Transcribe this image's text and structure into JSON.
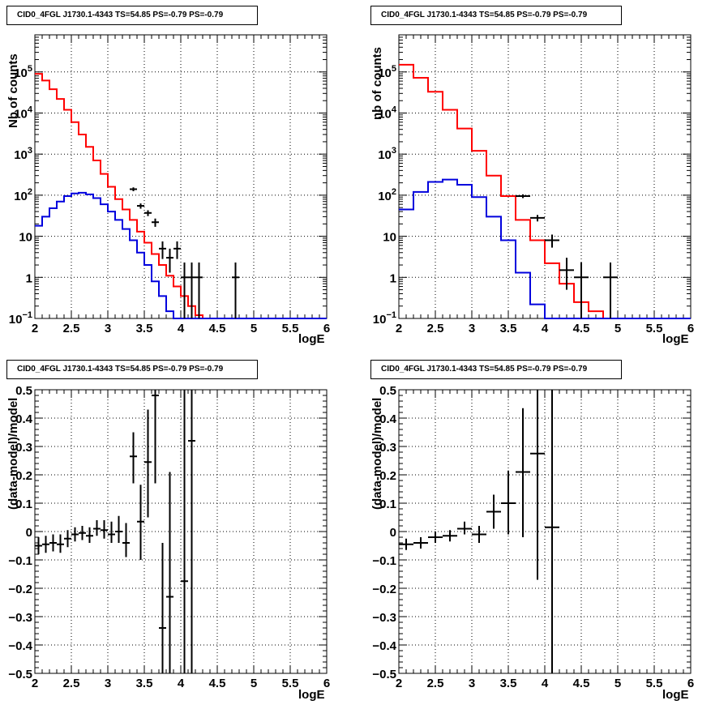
{
  "panels": [
    {
      "title": "CID0_4FGL J1730.1-4343 TS=54.85 PS=-0.79 PS=-0.79",
      "xlabel": "logE",
      "ylabel": "Nb of counts"
    },
    {
      "title": "CID0_4FGL J1730.1-4343 TS=54.85 PS=-0.79 PS=-0.79",
      "xlabel": "logE",
      "ylabel": "nb of counts"
    },
    {
      "title": "CID0_4FGL J1730.1-4343 TS=54.85 PS=-0.79 PS=-0.79",
      "xlabel": "logE",
      "ylabel": "(data-model)/model"
    },
    {
      "title": "CID0_4FGL J1730.1-4343 TS=54.85 PS=-0.79 PS=-0.79",
      "xlabel": "logE",
      "ylabel": "(data-model)/model"
    }
  ],
  "chart_data": [
    {
      "type": "line",
      "title": "CID0_4FGL J1730.1-4343 TS=54.85 PS=-0.79 PS=-0.79",
      "xlabel": "logE",
      "ylabel": "Nb of counts",
      "xlim": [
        2,
        6
      ],
      "ylim": [
        0.1,
        800000
      ],
      "yscale": "log",
      "grid": true,
      "x_ticks": [
        "2",
        "2.5",
        "3",
        "3.5",
        "4",
        "4.5",
        "5",
        "5.5",
        "6"
      ],
      "y_ticks": [
        {
          "v": 0.1,
          "label": "10",
          "sup": "−1"
        },
        {
          "v": 1,
          "label": "1",
          "sup": ""
        },
        {
          "v": 10,
          "label": "10",
          "sup": ""
        },
        {
          "v": 100,
          "label": "10",
          "sup": "2"
        },
        {
          "v": 1000,
          "label": "10",
          "sup": "3"
        },
        {
          "v": 10000,
          "label": "10",
          "sup": "4"
        },
        {
          "v": 100000,
          "label": "10",
          "sup": "5"
        }
      ],
      "bin_edges": [
        2.0,
        2.1,
        2.2,
        2.3,
        2.4,
        2.5,
        2.6,
        2.7,
        2.8,
        2.9,
        3.0,
        3.1,
        3.2,
        3.3,
        3.4,
        3.5,
        3.6,
        3.7,
        3.8,
        3.9,
        4.0,
        4.1,
        4.2,
        4.3,
        4.4,
        4.5,
        4.6,
        4.7,
        4.8,
        4.9,
        5.0,
        5.1,
        5.2,
        5.3,
        5.4,
        5.5,
        5.6,
        5.7,
        5.8,
        5.9,
        6.0
      ],
      "series": [
        {
          "color": "#ff0000",
          "values": [
            90000,
            62000,
            38000,
            22000,
            12000,
            6000,
            3000,
            1500,
            700,
            330,
            160,
            80,
            45,
            25,
            13,
            7,
            3.7,
            2.0,
            1.1,
            0.6,
            0.35,
            0.2,
            0.12,
            0.1,
            0.1,
            0.1,
            0.1,
            0.1,
            0.1,
            0.1,
            0.1,
            0.1,
            0.1,
            0.1,
            0.1,
            0.1,
            0.1,
            0.1,
            0.1,
            0.1
          ]
        },
        {
          "color": "#0000dd",
          "values": [
            18,
            30,
            48,
            70,
            95,
            110,
            115,
            105,
            85,
            60,
            40,
            25,
            15,
            8,
            4,
            2,
            0.8,
            0.35,
            0.15,
            0.1,
            0.1,
            0.1,
            0.1,
            0.1,
            0.1,
            0.1,
            0.1,
            0.1,
            0.1,
            0.1,
            0.1,
            0.1,
            0.1,
            0.1,
            0.1,
            0.1,
            0.1,
            0.1,
            0.1,
            0.1
          ]
        }
      ],
      "points": [
        {
          "x": 3.35,
          "y": 140,
          "lo": 125,
          "hi": 155
        },
        {
          "x": 3.45,
          "y": 55,
          "lo": 47,
          "hi": 63
        },
        {
          "x": 3.55,
          "y": 37,
          "lo": 31,
          "hi": 43
        },
        {
          "x": 3.65,
          "y": 22,
          "lo": 17,
          "hi": 27
        },
        {
          "x": 3.75,
          "y": 5,
          "lo": 2.8,
          "hi": 7.5
        },
        {
          "x": 3.85,
          "y": 3,
          "lo": 1.3,
          "hi": 5
        },
        {
          "x": 3.95,
          "y": 5,
          "lo": 2.8,
          "hi": 7.5
        },
        {
          "x": 4.05,
          "y": 1,
          "lo": 0.1,
          "hi": 2.3
        },
        {
          "x": 4.15,
          "y": 1,
          "lo": 0.1,
          "hi": 2.3
        },
        {
          "x": 4.25,
          "y": 1,
          "lo": 0.1,
          "hi": 2.3
        },
        {
          "x": 4.75,
          "y": 1,
          "lo": 0.1,
          "hi": 2.3
        }
      ]
    },
    {
      "type": "line",
      "title": "CID0_4FGL J1730.1-4343 TS=54.85 PS=-0.79 PS=-0.79",
      "xlabel": "logE",
      "ylabel": "nb of counts",
      "xlim": [
        2,
        6
      ],
      "ylim": [
        0.1,
        800000
      ],
      "yscale": "log",
      "grid": true,
      "x_ticks": [
        "2",
        "2.5",
        "3",
        "3.5",
        "4",
        "4.5",
        "5",
        "5.5",
        "6"
      ],
      "y_ticks": [
        {
          "v": 0.1,
          "label": "10",
          "sup": "−1"
        },
        {
          "v": 1,
          "label": "1",
          "sup": ""
        },
        {
          "v": 10,
          "label": "10",
          "sup": ""
        },
        {
          "v": 100,
          "label": "10",
          "sup": "2"
        },
        {
          "v": 1000,
          "label": "10",
          "sup": "3"
        },
        {
          "v": 10000,
          "label": "10",
          "sup": "4"
        },
        {
          "v": 100000,
          "label": "10",
          "sup": "5"
        }
      ],
      "bin_edges": [
        2.0,
        2.2,
        2.4,
        2.6,
        2.8,
        3.0,
        3.2,
        3.4,
        3.6,
        3.8,
        4.0,
        4.2,
        4.4,
        4.6,
        4.8,
        5.0,
        5.2,
        5.4,
        5.6,
        5.8,
        6.0
      ],
      "series": [
        {
          "color": "#ff0000",
          "values": [
            150000,
            72000,
            33000,
            12000,
            4200,
            1200,
            300,
            95,
            25,
            8,
            2.2,
            0.7,
            0.25,
            0.15,
            0.1,
            0.1,
            0.1,
            0.1,
            0.1,
            0.1
          ]
        },
        {
          "color": "#0000dd",
          "values": [
            45,
            120,
            210,
            240,
            180,
            90,
            30,
            8,
            1.3,
            0.22,
            0.1,
            0.1,
            0.1,
            0.1,
            0.1,
            0.1,
            0.1,
            0.1,
            0.1,
            0.1
          ]
        }
      ],
      "points": [
        {
          "x": 3.7,
          "y": 95,
          "lo": 85,
          "hi": 105
        },
        {
          "x": 3.9,
          "y": 28,
          "lo": 23,
          "hi": 33
        },
        {
          "x": 4.1,
          "y": 8,
          "lo": 5.3,
          "hi": 11
        },
        {
          "x": 4.3,
          "y": 1.5,
          "lo": 0.5,
          "hi": 3
        },
        {
          "x": 4.5,
          "y": 1,
          "lo": 0.1,
          "hi": 2.3
        },
        {
          "x": 4.9,
          "y": 1,
          "lo": 0.1,
          "hi": 2.3
        }
      ]
    },
    {
      "type": "scatter",
      "title": "CID0_4FGL J1730.1-4343 TS=54.85 PS=-0.79 PS=-0.79",
      "xlabel": "logE",
      "ylabel": "(data-model)/model",
      "xlim": [
        2,
        6
      ],
      "ylim": [
        -0.5,
        0.5
      ],
      "grid": true,
      "x_ticks": [
        "2",
        "2.5",
        "3",
        "3.5",
        "4",
        "4.5",
        "5",
        "5.5",
        "6"
      ],
      "y_ticks": [
        "−0.5",
        "−0.4",
        "−0.3",
        "−0.2",
        "−0.1",
        "0",
        "0.1",
        "0.2",
        "0.3",
        "0.4",
        "0.5"
      ],
      "points": [
        {
          "x": 2.05,
          "y": -0.05,
          "lo": -0.08,
          "hi": -0.02,
          "xw": 0.05
        },
        {
          "x": 2.15,
          "y": -0.045,
          "lo": -0.075,
          "hi": -0.015,
          "xw": 0.05
        },
        {
          "x": 2.25,
          "y": -0.04,
          "lo": -0.07,
          "hi": -0.01,
          "xw": 0.05
        },
        {
          "x": 2.35,
          "y": -0.045,
          "lo": -0.075,
          "hi": -0.01,
          "xw": 0.05
        },
        {
          "x": 2.45,
          "y": -0.025,
          "lo": -0.055,
          "hi": 0.005,
          "xw": 0.05
        },
        {
          "x": 2.55,
          "y": -0.01,
          "lo": -0.035,
          "hi": 0.015,
          "xw": 0.05
        },
        {
          "x": 2.65,
          "y": -0.005,
          "lo": -0.03,
          "hi": 0.02,
          "xw": 0.05
        },
        {
          "x": 2.75,
          "y": -0.015,
          "lo": -0.04,
          "hi": 0.015,
          "xw": 0.05
        },
        {
          "x": 2.85,
          "y": 0.01,
          "lo": -0.015,
          "hi": 0.04,
          "xw": 0.05
        },
        {
          "x": 2.95,
          "y": 0.005,
          "lo": -0.025,
          "hi": 0.04,
          "xw": 0.05
        },
        {
          "x": 3.05,
          "y": -0.01,
          "lo": -0.04,
          "hi": 0.035,
          "xw": 0.05
        },
        {
          "x": 3.15,
          "y": 0,
          "lo": -0.04,
          "hi": 0.055,
          "xw": 0.05
        },
        {
          "x": 3.25,
          "y": -0.04,
          "lo": -0.09,
          "hi": 0.03,
          "xw": 0.05
        },
        {
          "x": 3.35,
          "y": 0.265,
          "lo": 0.17,
          "hi": 0.35,
          "xw": 0.05
        },
        {
          "x": 3.45,
          "y": 0.035,
          "lo": -0.1,
          "hi": 0.165,
          "xw": 0.05
        },
        {
          "x": 3.55,
          "y": 0.245,
          "lo": 0.05,
          "hi": 0.43,
          "xw": 0.05
        },
        {
          "x": 3.65,
          "y": 0.48,
          "lo": 0.17,
          "hi": 0.5,
          "xw": 0.05
        },
        {
          "x": 3.75,
          "y": -0.34,
          "lo": -0.5,
          "hi": -0.04,
          "xw": 0.05
        },
        {
          "x": 3.85,
          "y": -0.23,
          "lo": -0.5,
          "hi": 0.21,
          "xw": 0.05
        },
        {
          "x": 4.05,
          "y": -0.175,
          "lo": -0.5,
          "hi": 0.5,
          "xw": 0.05
        },
        {
          "x": 4.15,
          "y": 0.32,
          "lo": -0.5,
          "hi": 0.5,
          "xw": 0.05
        }
      ]
    },
    {
      "type": "scatter",
      "title": "CID0_4FGL J1730.1-4343 TS=54.85 PS=-0.79 PS=-0.79",
      "xlabel": "logE",
      "ylabel": "(data-model)/model",
      "xlim": [
        2,
        6
      ],
      "ylim": [
        -0.5,
        0.5
      ],
      "grid": true,
      "x_ticks": [
        "2",
        "2.5",
        "3",
        "3.5",
        "4",
        "4.5",
        "5",
        "5.5",
        "6"
      ],
      "y_ticks": [
        "−0.5",
        "−0.4",
        "−0.3",
        "−0.2",
        "−0.1",
        "0",
        "0.1",
        "0.2",
        "0.3",
        "0.4",
        "0.5"
      ],
      "points": [
        {
          "x": 2.1,
          "y": -0.045,
          "lo": -0.065,
          "hi": -0.025,
          "xw": 0.1
        },
        {
          "x": 2.3,
          "y": -0.04,
          "lo": -0.06,
          "hi": -0.02,
          "xw": 0.1
        },
        {
          "x": 2.5,
          "y": -0.02,
          "lo": -0.04,
          "hi": 0.0,
          "xw": 0.1
        },
        {
          "x": 2.7,
          "y": -0.015,
          "lo": -0.035,
          "hi": 0.005,
          "xw": 0.1
        },
        {
          "x": 2.9,
          "y": 0.01,
          "lo": -0.01,
          "hi": 0.035,
          "xw": 0.1
        },
        {
          "x": 3.1,
          "y": -0.01,
          "lo": -0.04,
          "hi": 0.02,
          "xw": 0.1
        },
        {
          "x": 3.3,
          "y": 0.07,
          "lo": 0.01,
          "hi": 0.13,
          "xw": 0.1
        },
        {
          "x": 3.5,
          "y": 0.1,
          "lo": -0.01,
          "hi": 0.215,
          "xw": 0.1
        },
        {
          "x": 3.7,
          "y": 0.21,
          "lo": -0.02,
          "hi": 0.435,
          "xw": 0.1
        },
        {
          "x": 3.9,
          "y": 0.275,
          "lo": -0.17,
          "hi": 0.5,
          "xw": 0.1
        },
        {
          "x": 4.1,
          "y": 0.015,
          "lo": -0.5,
          "hi": 0.5,
          "xw": 0.1
        }
      ]
    }
  ]
}
